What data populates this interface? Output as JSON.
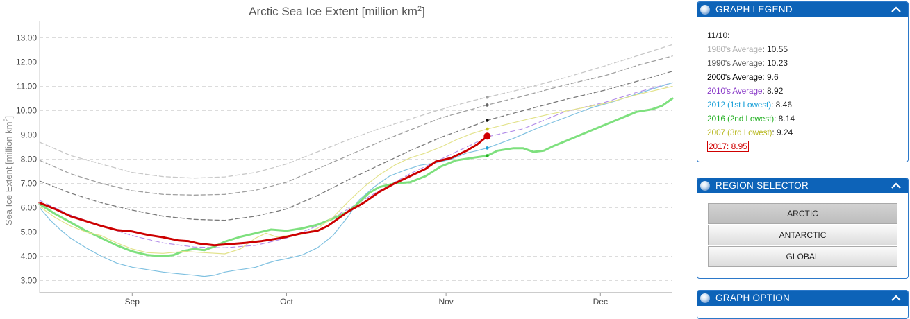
{
  "chart_data": {
    "type": "line",
    "title_main": "Arctic Sea Ice Extent [million km",
    "title_sup": "2",
    "title_end": "]",
    "ylabel_main": "Sea Ice Extent [million km",
    "ylabel_sup": "2",
    "ylabel_end": "]",
    "ylim": [
      2.5,
      13.7
    ],
    "xlim": [
      226,
      349
    ],
    "yticks": [
      "3.00",
      "4.00",
      "5.00",
      "6.00",
      "7.00",
      "8.00",
      "9.00",
      "10.00",
      "11.00",
      "12.00",
      "13.00"
    ],
    "xticks": [
      {
        "label": "Sep",
        "x": 244
      },
      {
        "label": "Oct",
        "x": 274
      },
      {
        "label": "Nov",
        "x": 305
      },
      {
        "label": "Dec",
        "x": 335
      }
    ],
    "grid": true,
    "marker_day": 313,
    "series": [
      {
        "name": "1980's Average",
        "color": "#c8c8c8",
        "dash": "6,4",
        "width": 1.3,
        "points": [
          [
            226,
            8.7
          ],
          [
            232,
            8.15
          ],
          [
            238,
            7.8
          ],
          [
            244,
            7.45
          ],
          [
            250,
            7.28
          ],
          [
            256,
            7.22
          ],
          [
            262,
            7.27
          ],
          [
            268,
            7.45
          ],
          [
            274,
            7.8
          ],
          [
            280,
            8.3
          ],
          [
            286,
            8.8
          ],
          [
            292,
            9.25
          ],
          [
            298,
            9.65
          ],
          [
            304,
            10.05
          ],
          [
            310,
            10.4
          ],
          [
            313,
            10.55
          ],
          [
            320,
            10.9
          ],
          [
            328,
            11.35
          ],
          [
            336,
            11.85
          ],
          [
            342,
            12.25
          ],
          [
            349,
            12.72
          ]
        ]
      },
      {
        "name": "1990's Average",
        "color": "#a0a0a0",
        "dash": "6,4",
        "width": 1.3,
        "points": [
          [
            226,
            7.95
          ],
          [
            232,
            7.4
          ],
          [
            238,
            7.0
          ],
          [
            244,
            6.7
          ],
          [
            250,
            6.55
          ],
          [
            256,
            6.52
          ],
          [
            262,
            6.55
          ],
          [
            268,
            6.72
          ],
          [
            274,
            7.05
          ],
          [
            280,
            7.6
          ],
          [
            286,
            8.15
          ],
          [
            292,
            8.7
          ],
          [
            298,
            9.2
          ],
          [
            304,
            9.7
          ],
          [
            310,
            10.05
          ],
          [
            313,
            10.23
          ],
          [
            320,
            10.6
          ],
          [
            328,
            11.05
          ],
          [
            336,
            11.45
          ],
          [
            342,
            11.85
          ],
          [
            349,
            12.25
          ]
        ]
      },
      {
        "name": "2000's Average",
        "color": "#7a7a7a",
        "dash": "6,4",
        "width": 1.3,
        "points": [
          [
            226,
            7.1
          ],
          [
            232,
            6.6
          ],
          [
            238,
            6.2
          ],
          [
            244,
            5.9
          ],
          [
            250,
            5.65
          ],
          [
            256,
            5.52
          ],
          [
            262,
            5.48
          ],
          [
            268,
            5.65
          ],
          [
            274,
            5.95
          ],
          [
            280,
            6.5
          ],
          [
            286,
            7.15
          ],
          [
            292,
            7.75
          ],
          [
            298,
            8.35
          ],
          [
            304,
            8.9
          ],
          [
            310,
            9.35
          ],
          [
            313,
            9.6
          ],
          [
            320,
            10.0
          ],
          [
            328,
            10.45
          ],
          [
            336,
            10.85
          ],
          [
            342,
            11.2
          ],
          [
            349,
            11.62
          ]
        ]
      },
      {
        "name": "2010's Average",
        "color": "#b18be8",
        "dash": "7,4",
        "width": 1.1,
        "points": [
          [
            226,
            6.3
          ],
          [
            232,
            5.7
          ],
          [
            238,
            5.25
          ],
          [
            244,
            4.85
          ],
          [
            250,
            4.55
          ],
          [
            256,
            4.38
          ],
          [
            262,
            4.35
          ],
          [
            268,
            4.45
          ],
          [
            274,
            4.75
          ],
          [
            280,
            5.25
          ],
          [
            286,
            5.95
          ],
          [
            292,
            6.7
          ],
          [
            298,
            7.4
          ],
          [
            304,
            8.0
          ],
          [
            310,
            8.6
          ],
          [
            313,
            8.92
          ],
          [
            320,
            9.25
          ],
          [
            328,
            9.95
          ],
          [
            336,
            10.35
          ],
          [
            342,
            10.75
          ],
          [
            349,
            11.15
          ]
        ]
      },
      {
        "name": "2012 (1st Lowest)",
        "color": "#7ec0e0",
        "dash": "",
        "width": 1.2,
        "points": [
          [
            226,
            6.0
          ],
          [
            228,
            5.5
          ],
          [
            230,
            5.1
          ],
          [
            232,
            4.75
          ],
          [
            235,
            4.35
          ],
          [
            238,
            4.0
          ],
          [
            241,
            3.72
          ],
          [
            244,
            3.55
          ],
          [
            247,
            3.45
          ],
          [
            250,
            3.35
          ],
          [
            253,
            3.28
          ],
          [
            256,
            3.22
          ],
          [
            258,
            3.17
          ],
          [
            260,
            3.22
          ],
          [
            262,
            3.35
          ],
          [
            264,
            3.42
          ],
          [
            266,
            3.48
          ],
          [
            268,
            3.55
          ],
          [
            270,
            3.7
          ],
          [
            272,
            3.82
          ],
          [
            274,
            3.9
          ],
          [
            277,
            4.05
          ],
          [
            280,
            4.35
          ],
          [
            283,
            4.85
          ],
          [
            286,
            5.65
          ],
          [
            288,
            6.3
          ],
          [
            291,
            6.85
          ],
          [
            294,
            7.3
          ],
          [
            297,
            7.55
          ],
          [
            300,
            7.75
          ],
          [
            303,
            7.85
          ],
          [
            306,
            8.0
          ],
          [
            309,
            8.25
          ],
          [
            311,
            8.35
          ],
          [
            313,
            8.46
          ],
          [
            318,
            8.85
          ],
          [
            323,
            9.3
          ],
          [
            328,
            9.7
          ],
          [
            333,
            10.1
          ],
          [
            338,
            10.4
          ],
          [
            343,
            10.75
          ],
          [
            349,
            11.15
          ]
        ]
      },
      {
        "name": "2016 (2nd Lowest)",
        "color": "#7ee07e",
        "dash": "",
        "width": 3.0,
        "points": [
          [
            226,
            6.15
          ],
          [
            229,
            5.75
          ],
          [
            232,
            5.4
          ],
          [
            235,
            5.05
          ],
          [
            238,
            4.75
          ],
          [
            241,
            4.45
          ],
          [
            244,
            4.2
          ],
          [
            247,
            4.05
          ],
          [
            250,
            4.0
          ],
          [
            252,
            4.05
          ],
          [
            254,
            4.22
          ],
          [
            256,
            4.3
          ],
          [
            258,
            4.25
          ],
          [
            260,
            4.4
          ],
          [
            262,
            4.6
          ],
          [
            265,
            4.8
          ],
          [
            268,
            4.95
          ],
          [
            271,
            5.1
          ],
          [
            274,
            5.05
          ],
          [
            277,
            5.15
          ],
          [
            280,
            5.3
          ],
          [
            283,
            5.55
          ],
          [
            286,
            5.85
          ],
          [
            288,
            6.2
          ],
          [
            290,
            6.6
          ],
          [
            292,
            6.85
          ],
          [
            295,
            7.0
          ],
          [
            298,
            7.05
          ],
          [
            301,
            7.3
          ],
          [
            304,
            7.7
          ],
          [
            307,
            7.95
          ],
          [
            310,
            8.05
          ],
          [
            313,
            8.14
          ],
          [
            315,
            8.35
          ],
          [
            318,
            8.45
          ],
          [
            320,
            8.45
          ],
          [
            322,
            8.3
          ],
          [
            324,
            8.35
          ],
          [
            326,
            8.55
          ],
          [
            330,
            8.9
          ],
          [
            334,
            9.25
          ],
          [
            338,
            9.6
          ],
          [
            342,
            9.95
          ],
          [
            345,
            10.05
          ],
          [
            347,
            10.2
          ],
          [
            349,
            10.5
          ]
        ]
      },
      {
        "name": "2007 (3rd Lowest)",
        "color": "#e2e28a",
        "dash": "",
        "width": 1.2,
        "points": [
          [
            226,
            6.05
          ],
          [
            229,
            5.6
          ],
          [
            232,
            5.25
          ],
          [
            235,
            5.0
          ],
          [
            238,
            4.85
          ],
          [
            241,
            4.55
          ],
          [
            244,
            4.3
          ],
          [
            247,
            4.15
          ],
          [
            250,
            4.12
          ],
          [
            254,
            4.2
          ],
          [
            258,
            4.15
          ],
          [
            262,
            4.1
          ],
          [
            265,
            4.3
          ],
          [
            268,
            4.75
          ],
          [
            270,
            4.95
          ],
          [
            272,
            4.8
          ],
          [
            274,
            4.85
          ],
          [
            277,
            4.9
          ],
          [
            280,
            5.15
          ],
          [
            283,
            5.6
          ],
          [
            286,
            6.25
          ],
          [
            289,
            6.85
          ],
          [
            292,
            7.35
          ],
          [
            295,
            7.75
          ],
          [
            298,
            8.05
          ],
          [
            301,
            8.25
          ],
          [
            304,
            8.5
          ],
          [
            307,
            8.8
          ],
          [
            310,
            9.05
          ],
          [
            313,
            9.24
          ],
          [
            317,
            9.45
          ],
          [
            321,
            9.65
          ],
          [
            325,
            9.85
          ],
          [
            330,
            10.05
          ],
          [
            336,
            10.3
          ],
          [
            342,
            10.65
          ],
          [
            349,
            11.0
          ]
        ]
      },
      {
        "name": "2017",
        "color": "#cc0000",
        "dash": "",
        "width": 3.0,
        "points": [
          [
            226,
            6.2
          ],
          [
            229,
            5.95
          ],
          [
            232,
            5.65
          ],
          [
            235,
            5.45
          ],
          [
            238,
            5.25
          ],
          [
            241,
            5.08
          ],
          [
            244,
            5.02
          ],
          [
            247,
            4.88
          ],
          [
            250,
            4.78
          ],
          [
            253,
            4.65
          ],
          [
            255,
            4.62
          ],
          [
            257,
            4.52
          ],
          [
            260,
            4.45
          ],
          [
            263,
            4.5
          ],
          [
            266,
            4.55
          ],
          [
            269,
            4.62
          ],
          [
            272,
            4.72
          ],
          [
            274,
            4.8
          ],
          [
            277,
            4.95
          ],
          [
            280,
            5.05
          ],
          [
            282,
            5.25
          ],
          [
            284,
            5.55
          ],
          [
            286,
            5.85
          ],
          [
            289,
            6.2
          ],
          [
            292,
            6.65
          ],
          [
            295,
            7.0
          ],
          [
            298,
            7.3
          ],
          [
            301,
            7.6
          ],
          [
            303,
            7.9
          ],
          [
            306,
            8.05
          ],
          [
            309,
            8.35
          ],
          [
            311,
            8.6
          ],
          [
            313,
            8.95
          ]
        ]
      }
    ]
  },
  "legend": {
    "title": "GRAPH LEGEND",
    "date": "11/10:",
    "rows": [
      {
        "name": "1980's Average",
        "sep": ":",
        "value": "10.55",
        "color": "#b0b0b0"
      },
      {
        "name": "1990's Average",
        "sep": ":",
        "value": "10.23",
        "color": "#555555"
      },
      {
        "name": "2000's Average",
        "sep": ":",
        "value": "9.6",
        "color": "#000000"
      },
      {
        "name": "2010's Average",
        "sep": ":",
        "value": "8.92",
        "color": "#8a3cc8"
      },
      {
        "name": "2012 (1st Lowest)",
        "sep": ":",
        "value": "8.46",
        "color": "#1aa0d8"
      },
      {
        "name": "2016 (2nd Lowest)",
        "sep": ":",
        "value": "8.14",
        "color": "#22b022"
      },
      {
        "name": "2007 (3rd Lowest)",
        "sep": ":",
        "value": "9.24",
        "color": "#b8b820"
      },
      {
        "name": "2017",
        "sep": ":",
        "value": "8.95",
        "color": "#d00000"
      }
    ]
  },
  "region_selector": {
    "title": "REGION SELECTOR",
    "buttons": [
      "ARCTIC",
      "ANTARCTIC",
      "GLOBAL"
    ],
    "active_index": 0
  },
  "graph_option": {
    "title": "GRAPH OPTION"
  }
}
